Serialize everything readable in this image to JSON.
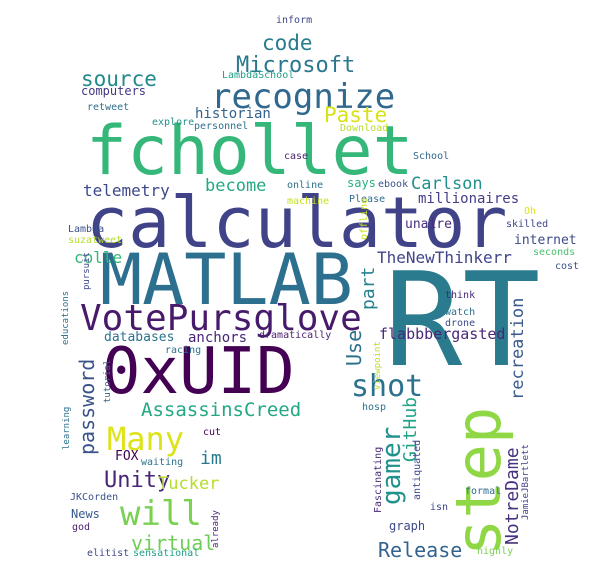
{
  "words": [
    {
      "text": "RT",
      "color": "#2a7b8e"
    },
    {
      "text": "calculator",
      "color": "#404387"
    },
    {
      "text": "fchollet",
      "color": "#35b779"
    },
    {
      "text": "MATLAB",
      "color": "#2d6f8e"
    },
    {
      "text": "0xUID",
      "color": "#440154"
    },
    {
      "text": "step",
      "color": "#8fd744"
    },
    {
      "text": "VotePursglove",
      "color": "#481a6c"
    },
    {
      "text": "recognize",
      "color": "#31688e"
    },
    {
      "text": "shot",
      "color": "#2c728e"
    },
    {
      "text": "Many",
      "color": "#dde318"
    },
    {
      "text": "AssassinsCreed",
      "color": "#22a884"
    },
    {
      "text": "Microsoft",
      "color": "#2a788e"
    },
    {
      "text": "will",
      "color": "#7ad151"
    },
    {
      "text": "gamer",
      "color": "#21918c"
    },
    {
      "text": "source",
      "color": "#23898e"
    },
    {
      "text": "Paste",
      "color": "#d8e219"
    },
    {
      "text": "code",
      "color": "#287c8e"
    },
    {
      "text": "password",
      "color": "#3b528b"
    },
    {
      "text": "Unity",
      "color": "#482576"
    },
    {
      "text": "virtual",
      "color": "#6ece58"
    },
    {
      "text": "Release",
      "color": "#33638d"
    },
    {
      "text": "recreation",
      "color": "#38598c"
    },
    {
      "text": "NotreDame",
      "color": "#46327e"
    },
    {
      "text": "GitHub",
      "color": "#20a386"
    },
    {
      "text": "Use",
      "color": "#2c728e"
    },
    {
      "text": "part",
      "color": "#26828e"
    },
    {
      "text": "become",
      "color": "#22a884"
    },
    {
      "text": "Carlson",
      "color": "#21918c"
    },
    {
      "text": "telemetry",
      "color": "#3e4989"
    },
    {
      "text": "TheNewThinkerr",
      "color": "#414487"
    },
    {
      "text": "flabbbergasted",
      "color": "#482878"
    },
    {
      "text": "Tucker",
      "color": "#b5de2b"
    },
    {
      "text": "colle",
      "color": "#35b779"
    },
    {
      "text": "im",
      "color": "#2a788e"
    },
    {
      "text": "historian",
      "color": "#33638d"
    },
    {
      "text": "millionaires",
      "color": "#433e85"
    },
    {
      "text": "anchors",
      "color": "#482475"
    },
    {
      "text": "databases",
      "color": "#2c728e"
    },
    {
      "text": "unaire",
      "color": "#472d7b"
    },
    {
      "text": "internet",
      "color": "#3e4989"
    },
    {
      "text": "computers",
      "color": "#453781"
    },
    {
      "text": "says",
      "color": "#29af7f"
    },
    {
      "text": "ebook",
      "color": "#3b528b"
    },
    {
      "text": "Please",
      "color": "#2f6c8e"
    },
    {
      "text": "skilled",
      "color": "#3f4788"
    },
    {
      "text": "case",
      "color": "#481f70"
    },
    {
      "text": "online",
      "color": "#2d708e"
    },
    {
      "text": "FOX",
      "color": "#440154"
    },
    {
      "text": "News",
      "color": "#38598c"
    },
    {
      "text": "graph",
      "color": "#3e4989"
    },
    {
      "text": "Fascinating",
      "color": "#482878"
    },
    {
      "text": "inform",
      "color": "#3f4788"
    },
    {
      "text": "retweet",
      "color": "#2f6c8e"
    },
    {
      "text": "personnel",
      "color": "#2c728e"
    },
    {
      "text": "explore",
      "color": "#21918c"
    },
    {
      "text": "Download",
      "color": "#b8de29"
    },
    {
      "text": "School",
      "color": "#31688e"
    },
    {
      "text": "Lambda",
      "color": "#3b528b"
    },
    {
      "text": "suzatweet",
      "color": "#b5de2b"
    },
    {
      "text": "machine",
      "color": "#c2df23"
    },
    {
      "text": "LambdaSchool",
      "color": "#1f9f88"
    },
    {
      "text": "offline",
      "color": "#c5e021"
    },
    {
      "text": "Oh",
      "color": "#dde318"
    },
    {
      "text": "seconds",
      "color": "#4ac16d"
    },
    {
      "text": "cost",
      "color": "#3b528b"
    },
    {
      "text": "think",
      "color": "#482878"
    },
    {
      "text": "watch",
      "color": "#2d708e"
    },
    {
      "text": "drone",
      "color": "#3e4989"
    },
    {
      "text": "viewpoint",
      "color": "#b8de29"
    },
    {
      "text": "racing",
      "color": "#2c728e"
    },
    {
      "text": "dramatically",
      "color": "#481f70"
    },
    {
      "text": "hosp",
      "color": "#2c728e"
    },
    {
      "text": "antiquated",
      "color": "#3e4989"
    },
    {
      "text": "JamieJBartlett",
      "color": "#404387"
    },
    {
      "text": "formal",
      "color": "#31688e"
    },
    {
      "text": "isn",
      "color": "#3f4788"
    },
    {
      "text": "highly",
      "color": "#7ad151"
    },
    {
      "text": "cut",
      "color": "#440154"
    },
    {
      "text": "waiting",
      "color": "#2c728e"
    },
    {
      "text": "already",
      "color": "#482475"
    },
    {
      "text": "tutorial",
      "color": "#33638d"
    },
    {
      "text": "learning",
      "color": "#2c728e"
    },
    {
      "text": "educations",
      "color": "#2d708e"
    },
    {
      "text": "pursuit",
      "color": "#3e4989"
    },
    {
      "text": "JKCorden",
      "color": "#3b528b"
    },
    {
      "text": "god",
      "color": "#481f70"
    },
    {
      "text": "elitist",
      "color": "#3e4989"
    },
    {
      "text": "sensational",
      "color": "#1f9f88"
    }
  ]
}
